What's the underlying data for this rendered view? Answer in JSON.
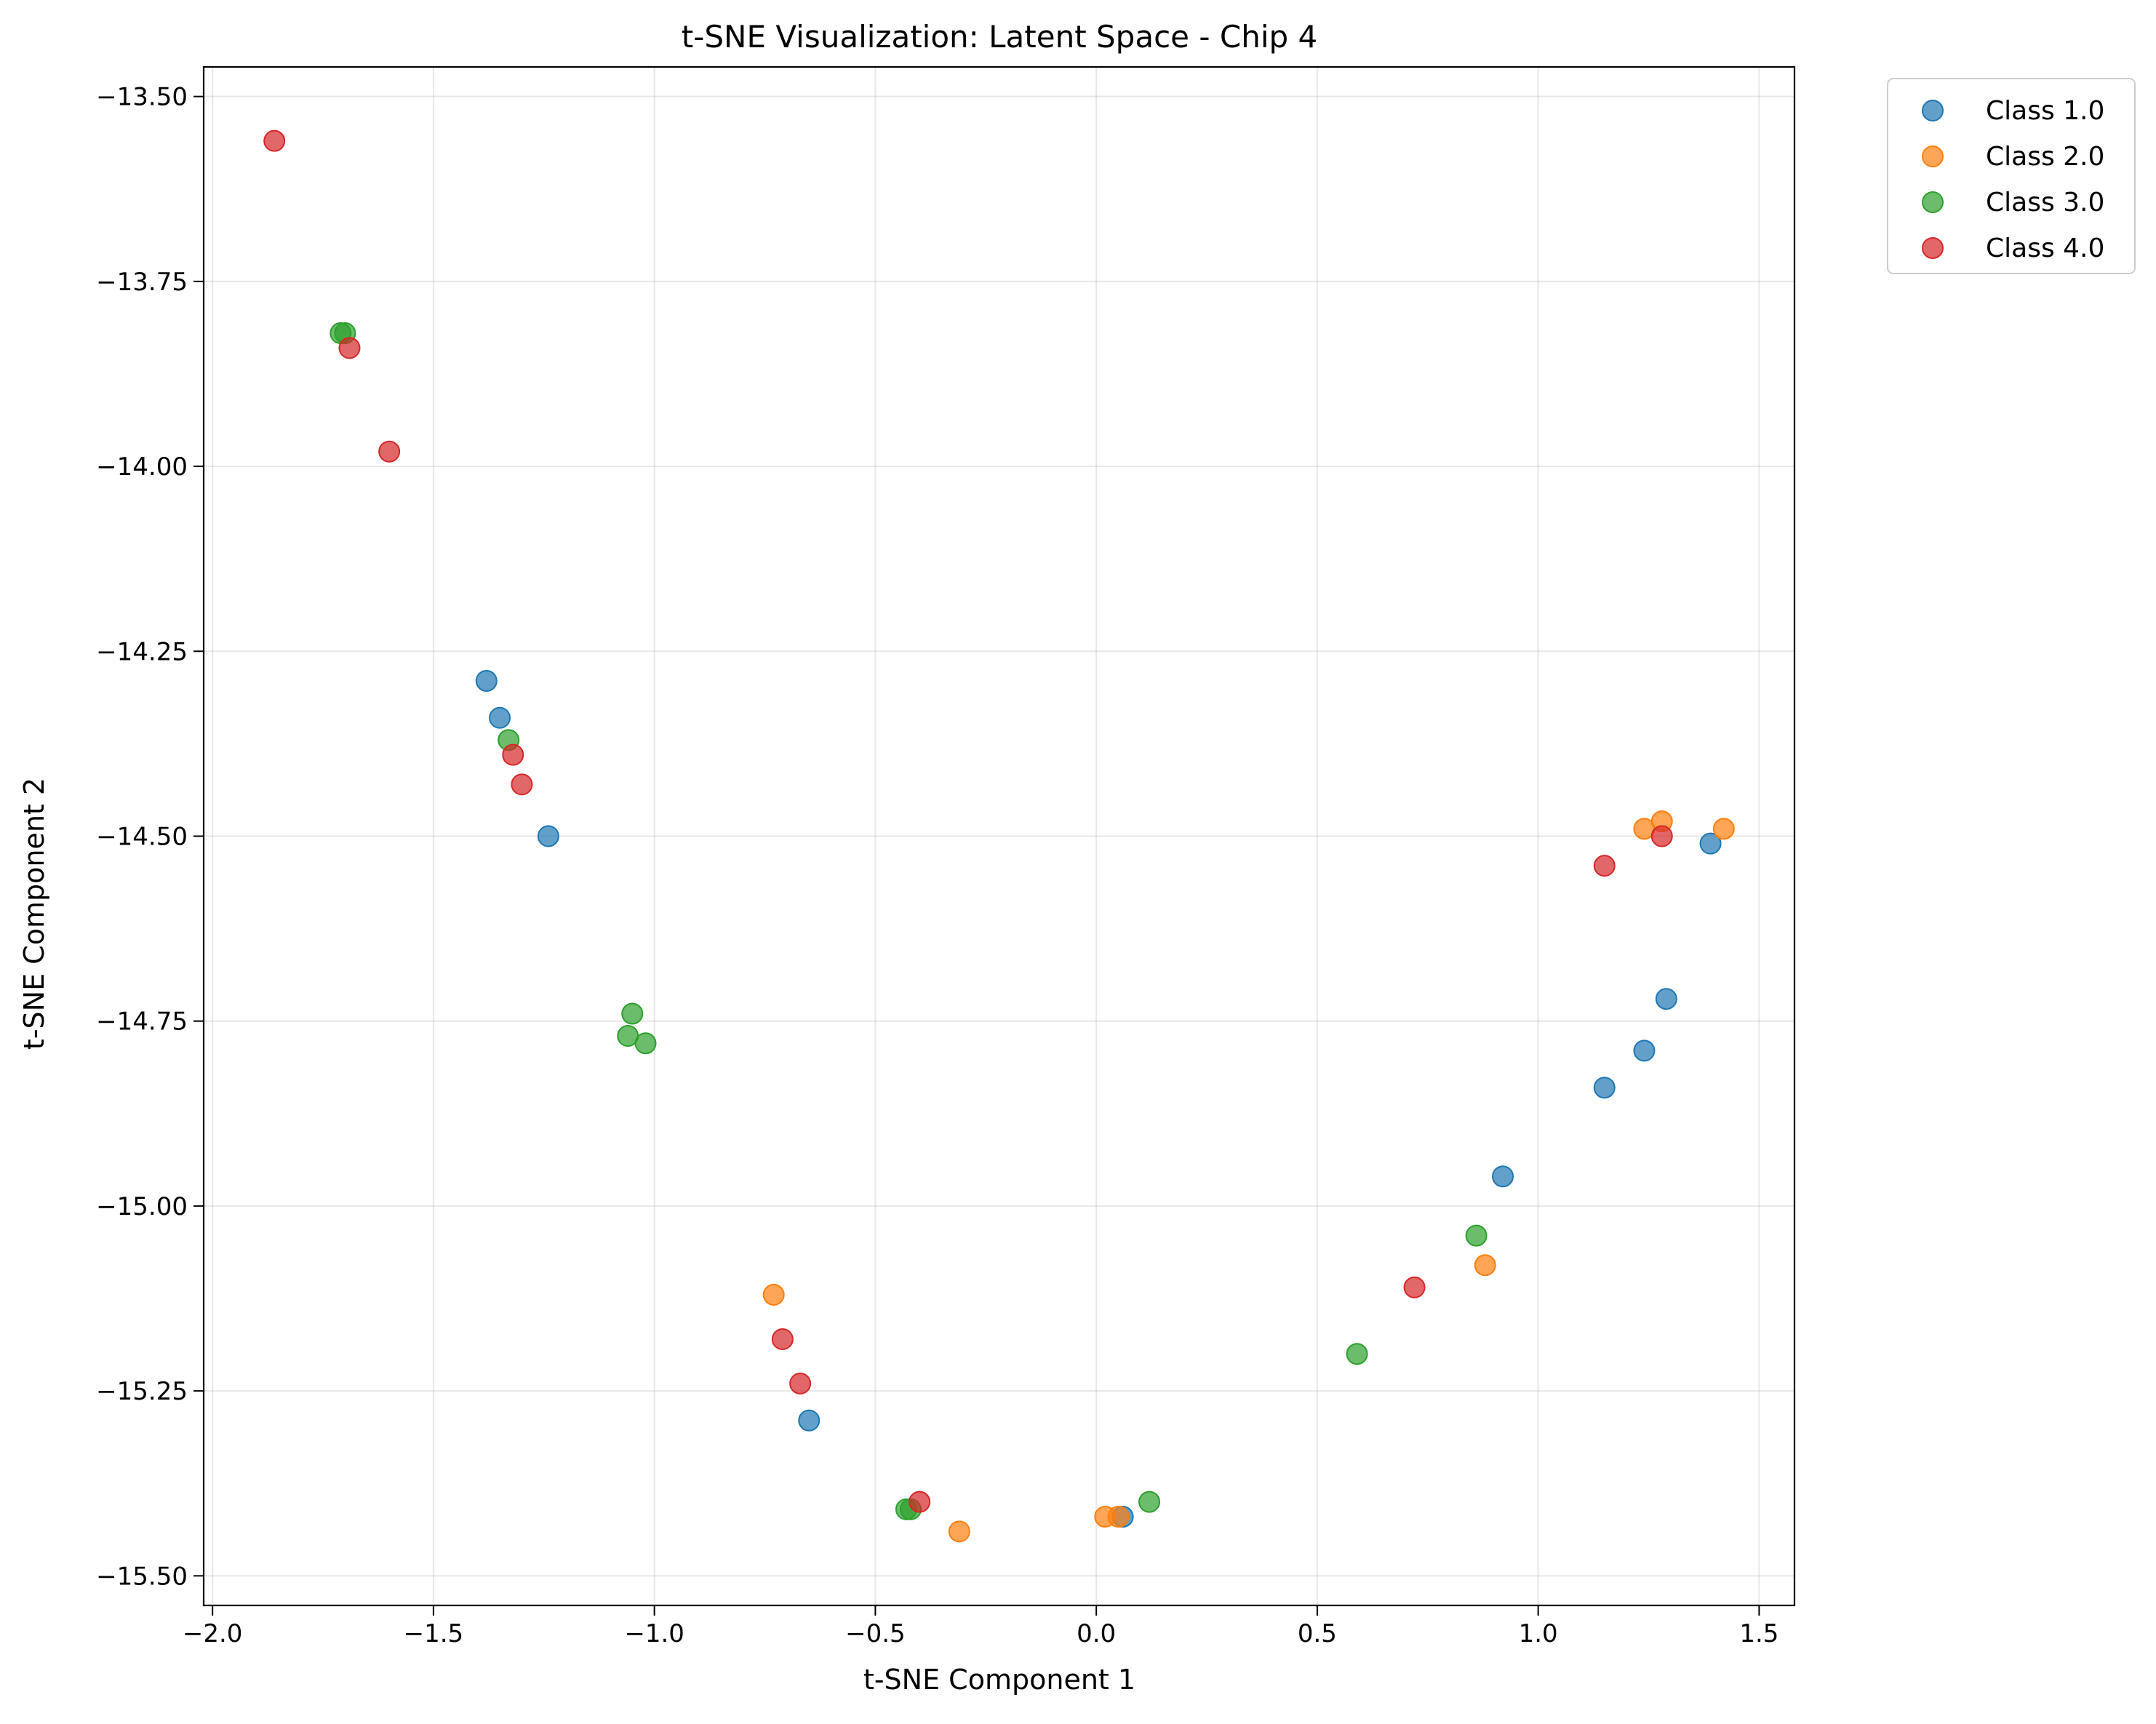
{
  "chart_data": {
    "type": "scatter",
    "title": "t-SNE Visualization: Latent Space - Chip 4",
    "xlabel": "t-SNE Component 1",
    "ylabel": "t-SNE Component 2",
    "xlim": [
      -2.02,
      1.58
    ],
    "ylim": [
      -15.54,
      -13.46
    ],
    "xticks": [
      -2.0,
      -1.5,
      -1.0,
      -0.5,
      0.0,
      0.5,
      1.0,
      1.5
    ],
    "xtick_labels": [
      "−2.0",
      "−1.5",
      "−1.0",
      "−0.5",
      "0.0",
      "0.5",
      "1.0",
      "1.5"
    ],
    "yticks": [
      -13.5,
      -13.75,
      -14.0,
      -14.25,
      -14.5,
      -14.75,
      -15.0,
      -15.25,
      -15.5
    ],
    "ytick_labels": [
      "−13.50",
      "−13.75",
      "−14.00",
      "−14.25",
      "−14.50",
      "−14.75",
      "−15.00",
      "−15.25",
      "−15.50"
    ],
    "grid": true,
    "legend_position": "outside-top-right",
    "series": [
      {
        "name": "Class 1.0",
        "color": "#1f77b4",
        "points": [
          [
            -1.38,
            -14.29
          ],
          [
            -1.35,
            -14.34
          ],
          [
            -1.24,
            -14.5
          ],
          [
            -0.65,
            -15.29
          ],
          [
            0.06,
            -15.42
          ],
          [
            0.92,
            -14.96
          ],
          [
            1.15,
            -14.84
          ],
          [
            1.24,
            -14.79
          ],
          [
            1.29,
            -14.72
          ],
          [
            1.39,
            -14.51
          ]
        ]
      },
      {
        "name": "Class 2.0",
        "color": "#ff7f0e",
        "points": [
          [
            -0.73,
            -15.12
          ],
          [
            -0.31,
            -15.44
          ],
          [
            0.02,
            -15.42
          ],
          [
            0.05,
            -15.42
          ],
          [
            0.88,
            -15.08
          ],
          [
            1.24,
            -14.49
          ],
          [
            1.28,
            -14.48
          ],
          [
            1.42,
            -14.49
          ]
        ]
      },
      {
        "name": "Class 3.0",
        "color": "#2ca02c",
        "points": [
          [
            -1.71,
            -13.82
          ],
          [
            -1.7,
            -13.82
          ],
          [
            -1.33,
            -14.37
          ],
          [
            -1.05,
            -14.74
          ],
          [
            -1.06,
            -14.77
          ],
          [
            -1.02,
            -14.78
          ],
          [
            -0.43,
            -15.41
          ],
          [
            -0.42,
            -15.41
          ],
          [
            0.12,
            -15.4
          ],
          [
            0.59,
            -15.2
          ],
          [
            0.86,
            -15.04
          ]
        ]
      },
      {
        "name": "Class 4.0",
        "color": "#d62728",
        "points": [
          [
            -1.86,
            -13.56
          ],
          [
            -1.69,
            -13.84
          ],
          [
            -1.6,
            -13.98
          ],
          [
            -1.32,
            -14.39
          ],
          [
            -1.3,
            -14.43
          ],
          [
            -0.71,
            -15.18
          ],
          [
            -0.67,
            -15.24
          ],
          [
            -0.4,
            -15.4
          ],
          [
            0.72,
            -15.11
          ],
          [
            1.15,
            -14.54
          ],
          [
            1.28,
            -14.5
          ]
        ]
      }
    ]
  }
}
